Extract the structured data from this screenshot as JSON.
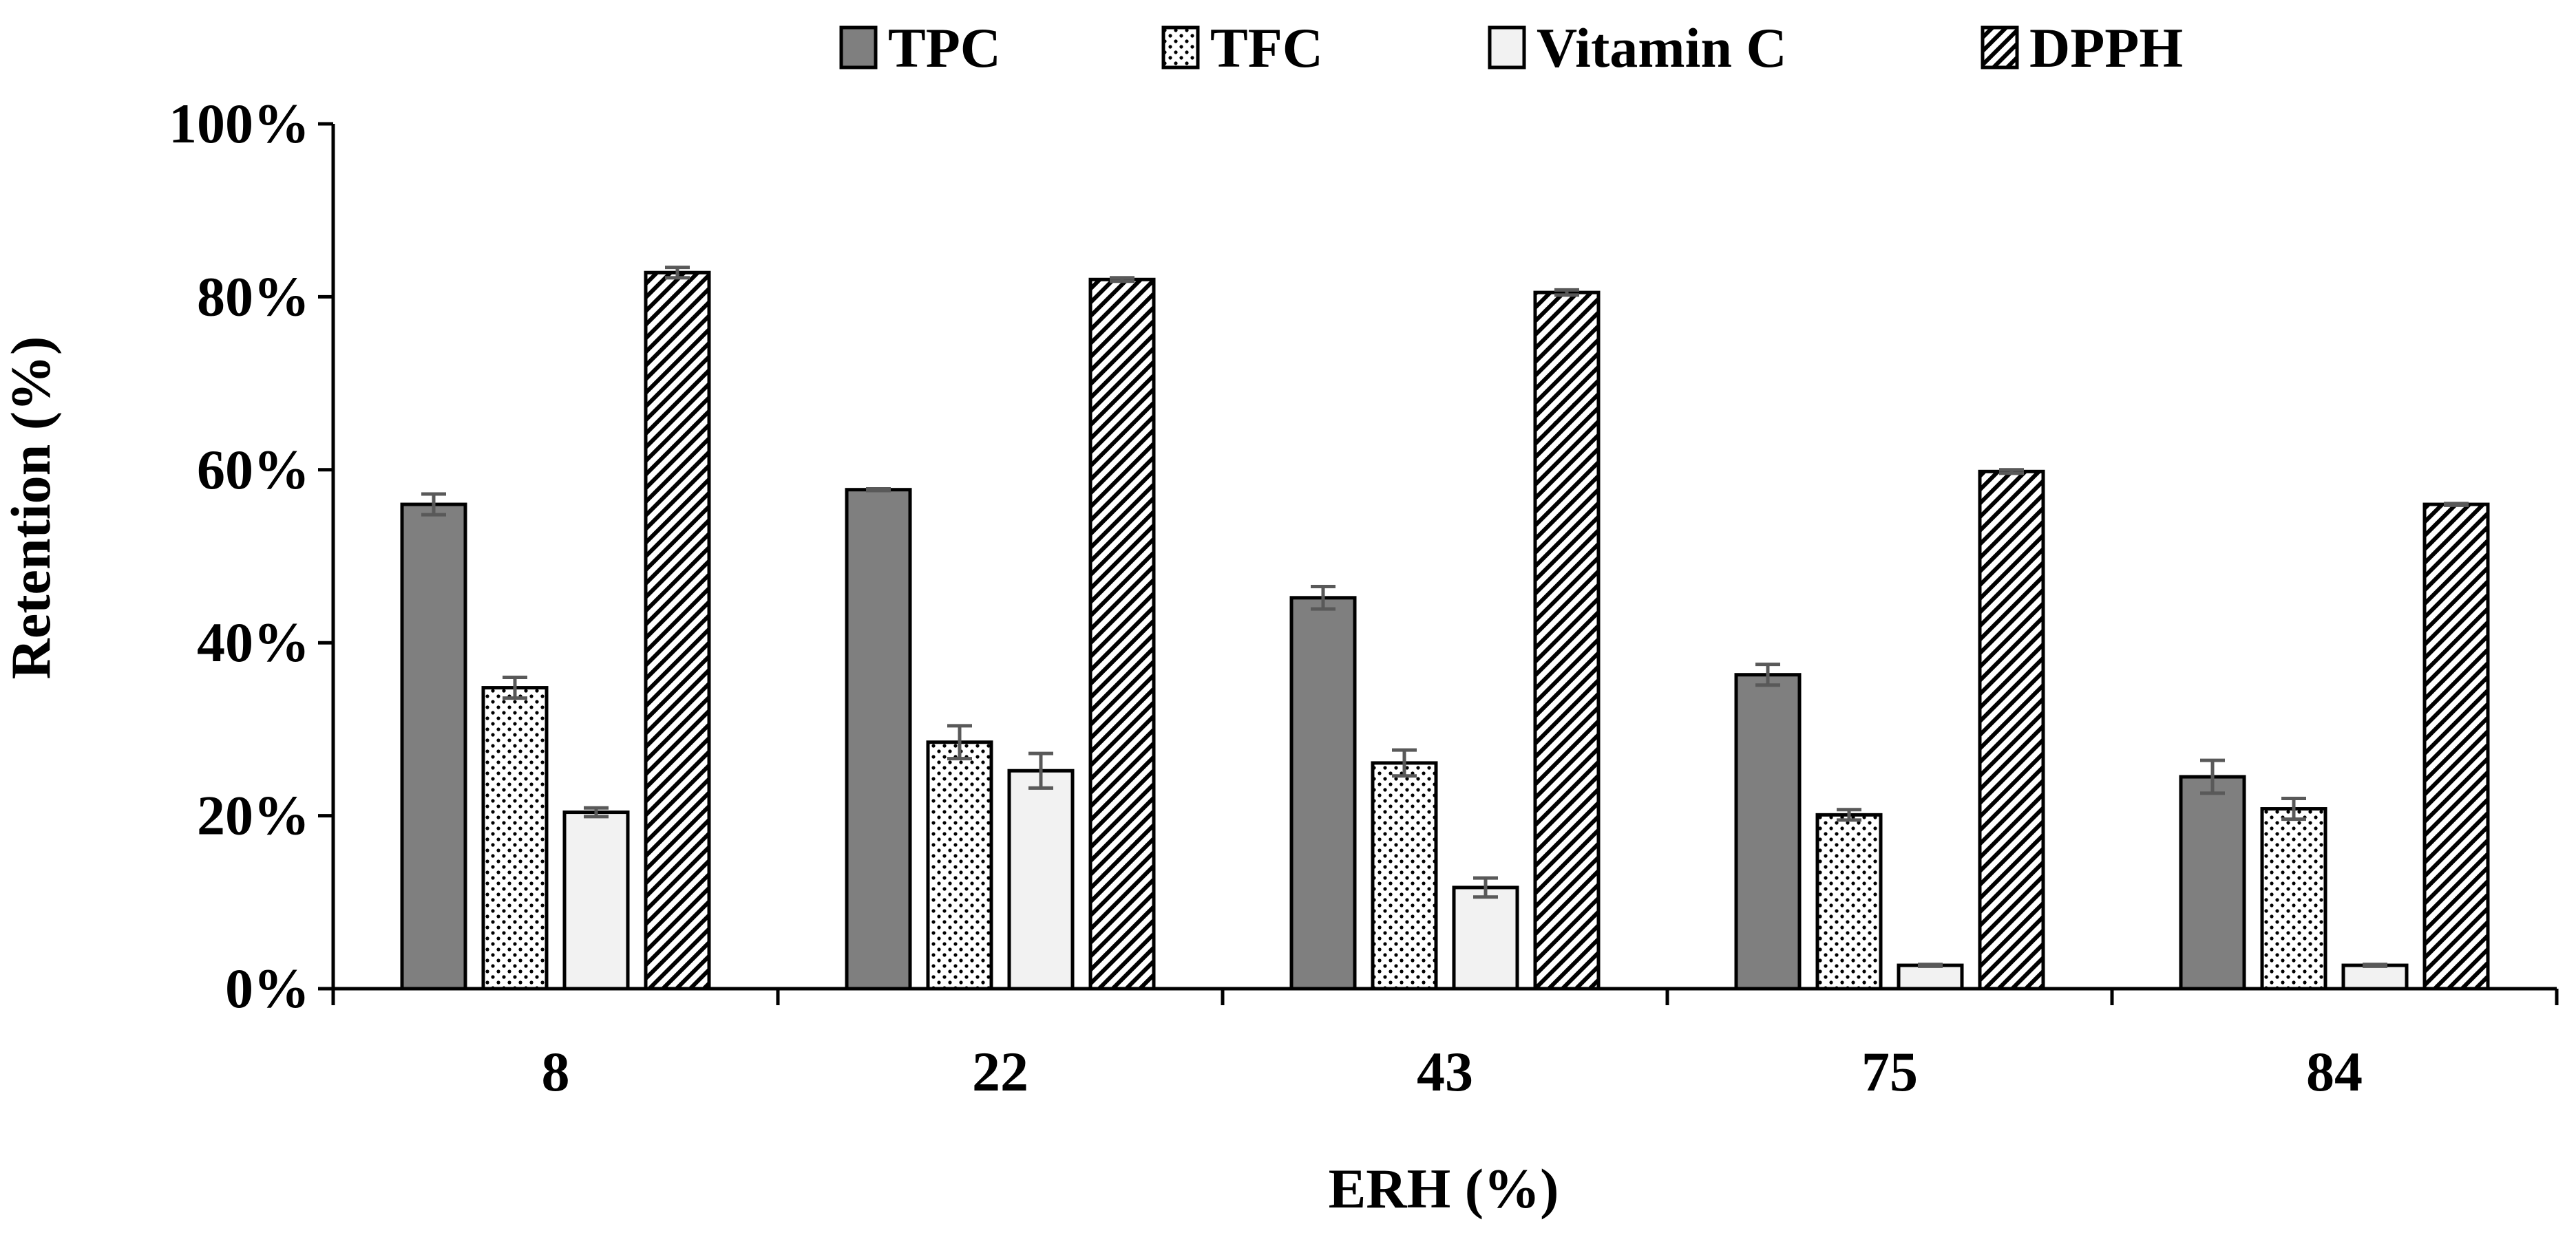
{
  "chart_data": {
    "type": "bar",
    "title": "",
    "xlabel": "ERH (%)",
    "ylabel": "Retention (%)",
    "ylim": [
      0,
      100
    ],
    "ytick_values": [
      0,
      20,
      40,
      60,
      80,
      100
    ],
    "ytick_labels": [
      "0%",
      "20%",
      "40%",
      "60%",
      "80%",
      "100%"
    ],
    "categories": [
      "8",
      "22",
      "43",
      "75",
      "84"
    ],
    "legend_position": "top-center",
    "grid": false,
    "series": [
      {
        "name": "TPC",
        "pattern": "solid",
        "color": "#7f7f7f",
        "values": [
          56,
          57.7,
          45.2,
          36.3,
          24.5
        ],
        "errors": [
          1.2,
          0.1,
          1.3,
          1.2,
          1.9
        ]
      },
      {
        "name": "TFC",
        "pattern": "dots",
        "color": "#ffffff",
        "values": [
          34.8,
          28.5,
          26.1,
          20.1,
          20.8
        ],
        "errors": [
          1.2,
          1.9,
          1.5,
          0.6,
          1.2
        ]
      },
      {
        "name": "Vitamin C",
        "pattern": "light",
        "color": "#f2f2f2",
        "values": [
          20.4,
          25.2,
          11.7,
          2.7,
          2.7
        ],
        "errors": [
          0.5,
          2.0,
          1.1,
          0.1,
          0.1
        ]
      },
      {
        "name": "DPPH",
        "pattern": "diagonal",
        "color": "#ffffff",
        "values": [
          82.8,
          82,
          80.5,
          59.8,
          56
        ],
        "errors": [
          0.6,
          0.2,
          0.3,
          0.2,
          0.1
        ]
      }
    ]
  }
}
